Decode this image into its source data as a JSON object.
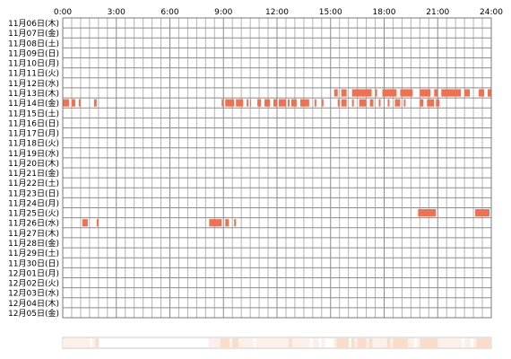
{
  "chart_data": {
    "type": "heatmap",
    "title": "",
    "xlabel": "",
    "ylabel": "",
    "x_ticks": [
      "0:00",
      "3:00",
      "6:00",
      "9:00",
      "12:00",
      "15:00",
      "18:00",
      "21:00",
      "24:00"
    ],
    "x_range_hours": [
      0,
      24
    ],
    "grid": true,
    "rows": [
      "11月06日(木)",
      "11月07日(金)",
      "11月08日(土)",
      "11月09日(日)",
      "11月10日(月)",
      "11月11日(火)",
      "11月12日(水)",
      "11月13日(木)",
      "11月14日(金)",
      "11月15日(土)",
      "11月16日(日)",
      "11月17日(月)",
      "11月18日(火)",
      "11月19日(水)",
      "11月20日(木)",
      "11月21日(金)",
      "11月22日(土)",
      "11月23日(日)",
      "11月24日(月)",
      "11月25日(火)",
      "11月26日(水)",
      "11月27日(木)",
      "11月28日(金)",
      "11月29日(土)",
      "11月30日(日)",
      "12月01日(月)",
      "12月02日(火)",
      "12月03日(水)",
      "12月04日(木)",
      "12月05日(金)"
    ],
    "activity_color": "#f07050",
    "activity": [
      {
        "row": "11月13日(木)",
        "intervals": [
          [
            15.2,
            15.4
          ],
          [
            15.6,
            15.9
          ],
          [
            16.2,
            17.3
          ],
          [
            17.5,
            17.6
          ],
          [
            17.9,
            18.7
          ],
          [
            18.9,
            19.6
          ],
          [
            20.0,
            20.6
          ],
          [
            20.8,
            21.0
          ],
          [
            21.2,
            22.3
          ],
          [
            22.5,
            22.8
          ],
          [
            23.3,
            23.6
          ],
          [
            23.8,
            24.0
          ]
        ]
      },
      {
        "row": "11月14日(金)",
        "intervals": [
          [
            0.0,
            0.35
          ],
          [
            0.5,
            0.7
          ],
          [
            0.9,
            1.0
          ],
          [
            1.75,
            1.9
          ],
          [
            8.9,
            9.0
          ],
          [
            9.1,
            9.6
          ],
          [
            9.7,
            10.1
          ],
          [
            10.3,
            10.4
          ],
          [
            10.5,
            10.55
          ],
          [
            10.9,
            11.1
          ],
          [
            11.3,
            11.6
          ],
          [
            11.8,
            12.0
          ],
          [
            12.1,
            12.5
          ],
          [
            12.6,
            12.7
          ],
          [
            12.8,
            13.1
          ],
          [
            13.3,
            13.8
          ],
          [
            14.1,
            14.2
          ],
          [
            14.5,
            14.6
          ],
          [
            15.4,
            15.5
          ],
          [
            15.6,
            15.9
          ],
          [
            16.2,
            16.3
          ],
          [
            16.6,
            17.0
          ],
          [
            17.2,
            17.4
          ],
          [
            17.7,
            17.8
          ],
          [
            18.2,
            18.3
          ],
          [
            18.6,
            18.9
          ],
          [
            19.1,
            19.2
          ],
          [
            20.0,
            20.2
          ],
          [
            20.4,
            20.8
          ],
          [
            20.9,
            21.1
          ]
        ]
      },
      {
        "row": "11月25日(火)",
        "intervals": [
          [
            19.9,
            20.9
          ],
          [
            23.1,
            23.9
          ]
        ]
      },
      {
        "row": "11月26日(水)",
        "intervals": [
          [
            1.1,
            1.4
          ],
          [
            1.9,
            2.0
          ],
          [
            8.2,
            8.9
          ],
          [
            9.1,
            9.3
          ],
          [
            9.6,
            9.7
          ]
        ]
      }
    ],
    "summary_strip": {
      "type": "hourly-density",
      "description_colors": [
        "#fdf0e8",
        "#fbdcc8"
      ]
    }
  }
}
